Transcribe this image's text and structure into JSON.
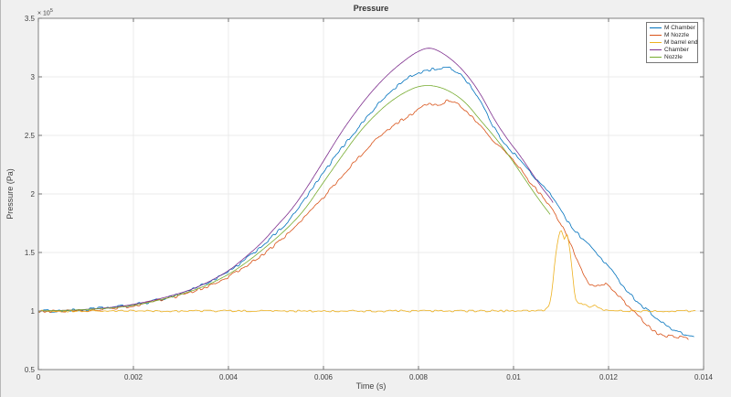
{
  "chart_data": {
    "type": "line",
    "title": "Pressure",
    "xlabel": "Time (s)",
    "ylabel": "Pressure (Pa)",
    "y_multiplier_base": "× 10",
    "y_multiplier_exponent": "5",
    "pressure_unit": "Pa, values stored as multiples of 1e5",
    "xlim": [
      0,
      0.014
    ],
    "ylim": [
      0.5,
      3.5
    ],
    "x_ticks": [
      "0",
      "0.002",
      "0.004",
      "0.006",
      "0.008",
      "0.01",
      "0.012",
      "0.014"
    ],
    "y_ticks": [
      "0.5",
      "1",
      "1.5",
      "2",
      "2.5",
      "3",
      "3.5"
    ],
    "grid": true,
    "legend_position": "northeast",
    "colors": {
      "figure_background": "#f0f0f0",
      "plot_background": "#ffffff",
      "axis_box": "#808080",
      "tick": "#707070",
      "grid": "#ebebeb",
      "text": "#404040"
    },
    "series": [
      {
        "name": "M Chamber",
        "color": "#0072BD",
        "noise": 0.012,
        "points": [
          [
            0,
            1.0
          ],
          [
            0.0005,
            1.0
          ],
          [
            0.001,
            1.01
          ],
          [
            0.0015,
            1.03
          ],
          [
            0.002,
            1.05
          ],
          [
            0.0025,
            1.09
          ],
          [
            0.003,
            1.15
          ],
          [
            0.0035,
            1.23
          ],
          [
            0.004,
            1.33
          ],
          [
            0.0043,
            1.42
          ],
          [
            0.0046,
            1.52
          ],
          [
            0.005,
            1.66
          ],
          [
            0.0053,
            1.78
          ],
          [
            0.0056,
            1.95
          ],
          [
            0.006,
            2.18
          ],
          [
            0.0063,
            2.35
          ],
          [
            0.0066,
            2.5
          ],
          [
            0.007,
            2.7
          ],
          [
            0.0073,
            2.83
          ],
          [
            0.0076,
            2.94
          ],
          [
            0.0079,
            3.02
          ],
          [
            0.0082,
            3.06
          ],
          [
            0.0084,
            3.07
          ],
          [
            0.0086,
            3.08
          ],
          [
            0.0088,
            3.05
          ],
          [
            0.009,
            2.98
          ],
          [
            0.0093,
            2.8
          ],
          [
            0.0096,
            2.55
          ],
          [
            0.0098,
            2.44
          ],
          [
            0.01,
            2.35
          ],
          [
            0.0102,
            2.26
          ],
          [
            0.0104,
            2.16
          ],
          [
            0.0106,
            2.07
          ],
          [
            0.0108,
            1.99
          ],
          [
            0.011,
            1.87
          ],
          [
            0.0112,
            1.72
          ],
          [
            0.0114,
            1.64
          ],
          [
            0.0116,
            1.56
          ],
          [
            0.0118,
            1.47
          ],
          [
            0.012,
            1.38
          ],
          [
            0.0122,
            1.27
          ],
          [
            0.0124,
            1.17
          ],
          [
            0.0126,
            1.08
          ],
          [
            0.0129,
            0.98
          ],
          [
            0.0131,
            0.91
          ],
          [
            0.0133,
            0.85
          ],
          [
            0.0135,
            0.81
          ],
          [
            0.0137,
            0.79
          ],
          [
            0.0138,
            0.78
          ]
        ]
      },
      {
        "name": "M Nozzle",
        "color": "#D95319",
        "noise": 0.012,
        "points": [
          [
            0,
            1.0
          ],
          [
            0.001,
            1.0
          ],
          [
            0.002,
            1.04
          ],
          [
            0.003,
            1.13
          ],
          [
            0.0035,
            1.2
          ],
          [
            0.004,
            1.29
          ],
          [
            0.0044,
            1.39
          ],
          [
            0.0048,
            1.5
          ],
          [
            0.0052,
            1.64
          ],
          [
            0.0056,
            1.8
          ],
          [
            0.006,
            1.97
          ],
          [
            0.0064,
            2.16
          ],
          [
            0.0068,
            2.34
          ],
          [
            0.0072,
            2.5
          ],
          [
            0.0076,
            2.62
          ],
          [
            0.008,
            2.72
          ],
          [
            0.0082,
            2.77
          ],
          [
            0.0084,
            2.75
          ],
          [
            0.0086,
            2.8
          ],
          [
            0.0088,
            2.78
          ],
          [
            0.009,
            2.71
          ],
          [
            0.0093,
            2.58
          ],
          [
            0.0096,
            2.44
          ],
          [
            0.01,
            2.3
          ],
          [
            0.0103,
            2.12
          ],
          [
            0.0106,
            1.98
          ],
          [
            0.0108,
            1.88
          ],
          [
            0.011,
            1.74
          ],
          [
            0.0112,
            1.58
          ],
          [
            0.0113,
            1.47
          ],
          [
            0.0115,
            1.3
          ],
          [
            0.0116,
            1.22
          ],
          [
            0.0118,
            1.21
          ],
          [
            0.0119,
            1.24
          ],
          [
            0.012,
            1.21
          ],
          [
            0.0122,
            1.13
          ],
          [
            0.0124,
            1.05
          ],
          [
            0.0126,
            0.97
          ],
          [
            0.0128,
            0.88
          ],
          [
            0.013,
            0.81
          ],
          [
            0.0132,
            0.79
          ],
          [
            0.0134,
            0.78
          ],
          [
            0.0136,
            0.77
          ],
          [
            0.0137,
            0.75
          ]
        ]
      },
      {
        "name": "M barrel end",
        "color": "#EDB120",
        "noise": 0.008,
        "points": [
          [
            0,
            1.0
          ],
          [
            0.001,
            1.0
          ],
          [
            0.002,
            1.0
          ],
          [
            0.003,
            1.0
          ],
          [
            0.004,
            1.0
          ],
          [
            0.005,
            1.0
          ],
          [
            0.006,
            1.0
          ],
          [
            0.007,
            1.0
          ],
          [
            0.008,
            1.0
          ],
          [
            0.009,
            1.0
          ],
          [
            0.01,
            1.0
          ],
          [
            0.0105,
            1.0
          ],
          [
            0.0107,
            1.01
          ],
          [
            0.01078,
            1.08
          ],
          [
            0.01084,
            1.3
          ],
          [
            0.0109,
            1.52
          ],
          [
            0.01095,
            1.65
          ],
          [
            0.011,
            1.71
          ],
          [
            0.01104,
            1.65
          ],
          [
            0.01108,
            1.6
          ],
          [
            0.01112,
            1.68
          ],
          [
            0.01118,
            1.55
          ],
          [
            0.01124,
            1.32
          ],
          [
            0.01128,
            1.16
          ],
          [
            0.01132,
            1.08
          ],
          [
            0.0114,
            1.05
          ],
          [
            0.0115,
            1.07
          ],
          [
            0.0116,
            1.03
          ],
          [
            0.0117,
            1.05
          ],
          [
            0.0118,
            1.02
          ],
          [
            0.012,
            1.0
          ],
          [
            0.0125,
            1.0
          ],
          [
            0.013,
            1.0
          ],
          [
            0.0135,
            1.0
          ],
          [
            0.01385,
            1.0
          ]
        ]
      },
      {
        "name": "Chamber",
        "color": "#7E2F8E",
        "noise": 0,
        "points": [
          [
            0,
            1.0
          ],
          [
            0.001,
            1.01
          ],
          [
            0.002,
            1.05
          ],
          [
            0.003,
            1.15
          ],
          [
            0.0035,
            1.23
          ],
          [
            0.004,
            1.34
          ],
          [
            0.0043,
            1.44
          ],
          [
            0.0047,
            1.58
          ],
          [
            0.005,
            1.72
          ],
          [
            0.0053,
            1.85
          ],
          [
            0.0056,
            2.02
          ],
          [
            0.006,
            2.28
          ],
          [
            0.0063,
            2.48
          ],
          [
            0.0066,
            2.66
          ],
          [
            0.007,
            2.87
          ],
          [
            0.0074,
            3.04
          ],
          [
            0.0078,
            3.17
          ],
          [
            0.008,
            3.22
          ],
          [
            0.0082,
            3.25
          ],
          [
            0.0084,
            3.23
          ],
          [
            0.0087,
            3.15
          ],
          [
            0.009,
            3.03
          ],
          [
            0.0093,
            2.86
          ],
          [
            0.0096,
            2.63
          ],
          [
            0.0099,
            2.45
          ],
          [
            0.0101,
            2.35
          ],
          [
            0.0104,
            2.17
          ],
          [
            0.0106,
            2.05
          ],
          [
            0.0108,
            1.95
          ],
          [
            0.01085,
            1.91
          ]
        ]
      },
      {
        "name": "Nozzle",
        "color": "#77AC30",
        "noise": 0,
        "points": [
          [
            0,
            1.0
          ],
          [
            0.001,
            1.01
          ],
          [
            0.002,
            1.04
          ],
          [
            0.003,
            1.14
          ],
          [
            0.0035,
            1.21
          ],
          [
            0.004,
            1.31
          ],
          [
            0.0044,
            1.42
          ],
          [
            0.0048,
            1.55
          ],
          [
            0.0052,
            1.69
          ],
          [
            0.0056,
            1.86
          ],
          [
            0.006,
            2.1
          ],
          [
            0.0064,
            2.33
          ],
          [
            0.0067,
            2.5
          ],
          [
            0.007,
            2.64
          ],
          [
            0.0074,
            2.79
          ],
          [
            0.0078,
            2.89
          ],
          [
            0.0081,
            2.93
          ],
          [
            0.0084,
            2.92
          ],
          [
            0.0087,
            2.87
          ],
          [
            0.009,
            2.78
          ],
          [
            0.0093,
            2.63
          ],
          [
            0.0096,
            2.49
          ],
          [
            0.0099,
            2.33
          ],
          [
            0.0102,
            2.15
          ],
          [
            0.0105,
            1.97
          ],
          [
            0.01078,
            1.82
          ]
        ]
      }
    ]
  }
}
